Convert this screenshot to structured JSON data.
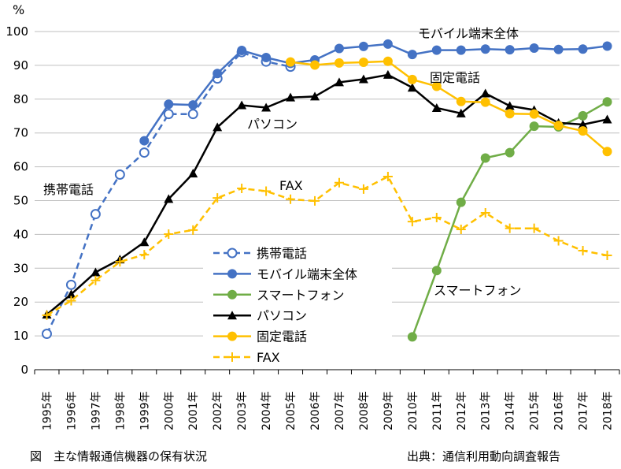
{
  "chart_data": {
    "type": "line",
    "y_unit": "%",
    "ylim": [
      0,
      100
    ],
    "yticks": [
      0,
      10,
      20,
      30,
      40,
      50,
      60,
      70,
      80,
      90,
      100
    ],
    "grid": "horizontal",
    "legend_position": "center-left",
    "categories": [
      "1995年",
      "1996年",
      "1997年",
      "1998年",
      "1999年",
      "2000年",
      "2001年",
      "2002年",
      "2003年",
      "2004年",
      "2005年",
      "2006年",
      "2007年",
      "2008年",
      "2009年",
      "2010年",
      "2011年",
      "2012年",
      "2013年",
      "2014年",
      "2015年",
      "2016年",
      "2017年",
      "2018年"
    ],
    "series": [
      {
        "name": "携帯電話",
        "color": "#4472C4",
        "style": "dashed",
        "marker": "open-circle",
        "values": [
          10.6,
          25.1,
          46.0,
          57.7,
          64.2,
          75.6,
          75.6,
          86.1,
          93.9,
          91.1,
          89.6,
          null,
          null,
          null,
          null,
          null,
          null,
          null,
          null,
          null,
          null,
          null,
          null,
          null
        ]
      },
      {
        "name": "モバイル端末全体",
        "color": "#4472C4",
        "style": "solid",
        "marker": "filled-circle",
        "values": [
          null,
          null,
          null,
          null,
          67.7,
          78.5,
          78.3,
          87.6,
          94.4,
          92.3,
          90.6,
          91.6,
          95.0,
          95.6,
          96.3,
          93.2,
          94.5,
          94.5,
          94.8,
          94.6,
          95.1,
          94.7,
          94.8,
          95.7
        ]
      },
      {
        "name": "スマートフォン",
        "color": "#70AD47",
        "style": "solid",
        "marker": "filled-circle",
        "values": [
          null,
          null,
          null,
          null,
          null,
          null,
          null,
          null,
          null,
          null,
          null,
          null,
          null,
          null,
          null,
          9.7,
          29.3,
          49.5,
          62.6,
          64.2,
          72.0,
          71.8,
          75.1,
          79.2
        ]
      },
      {
        "name": "パソコン",
        "color": "#000000",
        "style": "solid",
        "marker": "triangle",
        "values": [
          16.3,
          22.3,
          28.8,
          32.6,
          37.7,
          50.5,
          58.0,
          71.7,
          78.2,
          77.5,
          80.5,
          80.8,
          85.0,
          85.9,
          87.2,
          83.4,
          77.4,
          75.8,
          81.7,
          78.0,
          76.8,
          73.0,
          72.5,
          74.0
        ]
      },
      {
        "name": "固定電話",
        "color": "#FFC000",
        "style": "solid",
        "marker": "filled-circle",
        "values": [
          null,
          null,
          null,
          null,
          null,
          null,
          null,
          null,
          null,
          null,
          91.0,
          90.1,
          90.7,
          90.9,
          91.2,
          85.8,
          83.8,
          79.3,
          79.1,
          75.7,
          75.6,
          72.2,
          70.6,
          64.5
        ]
      },
      {
        "name": "FAX",
        "color": "#FFC000",
        "style": "dashed",
        "marker": "plus",
        "values": [
          16.1,
          20.4,
          26.4,
          31.9,
          34.0,
          40.1,
          41.3,
          50.8,
          53.6,
          52.8,
          50.4,
          49.9,
          55.3,
          53.4,
          57.1,
          43.8,
          45.0,
          41.5,
          46.4,
          41.8,
          41.8,
          38.1,
          35.2,
          33.8
        ]
      }
    ],
    "annotations": {
      "keitai": "携帯電話",
      "mobile": "モバイル端末全体",
      "kotei": "固定電話",
      "pasokon": "パソコン",
      "fax": "FAX",
      "smartphone": "スマートフォン"
    }
  },
  "caption": {
    "left": "図　主な情報通信機器の保有状況",
    "right": "出典：通信利用動向調査報告"
  }
}
